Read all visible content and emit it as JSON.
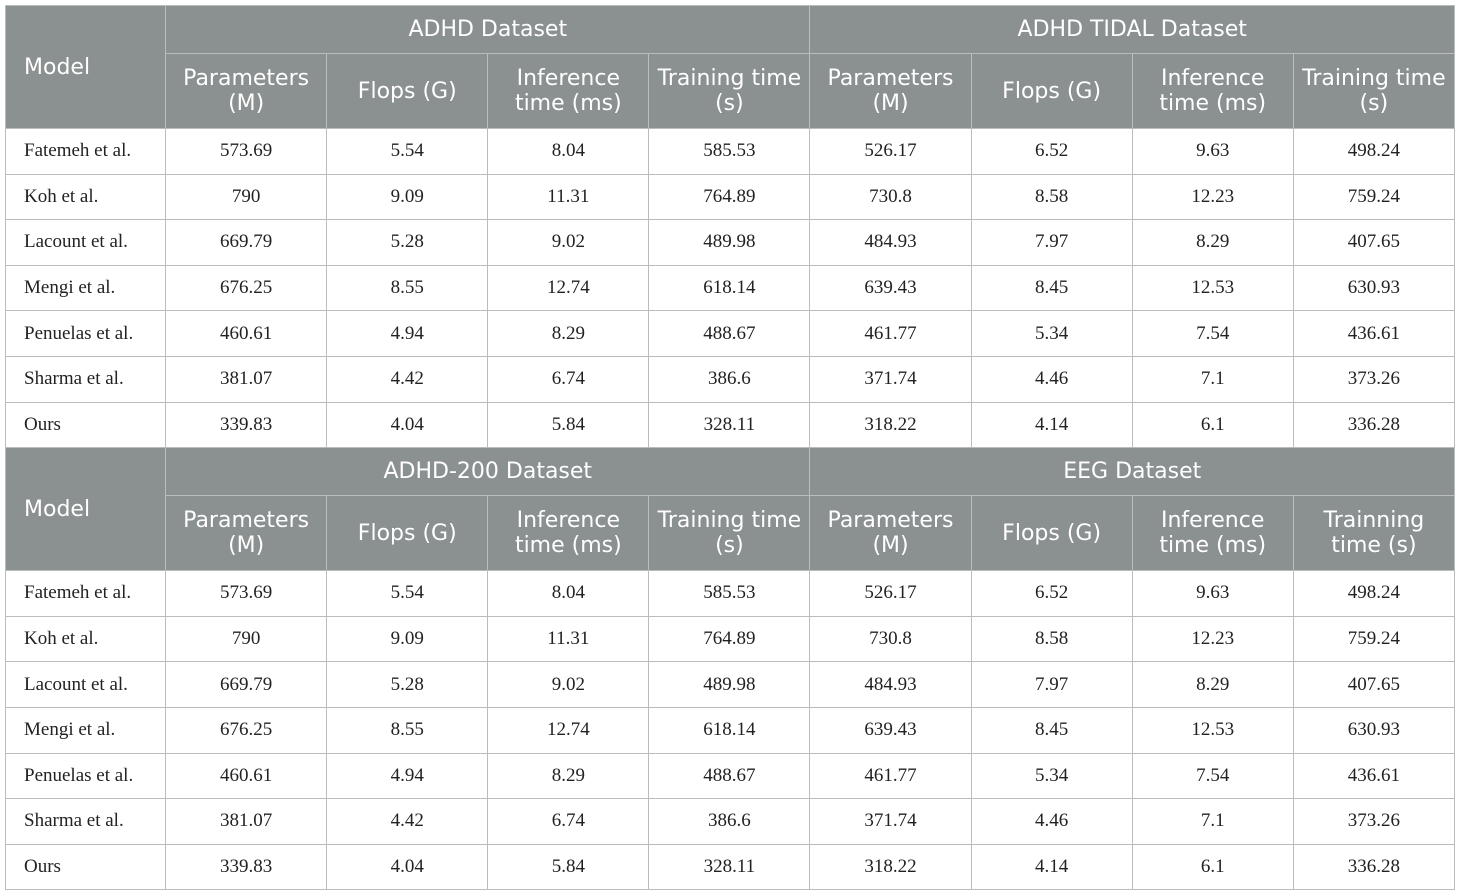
{
  "sections": [
    {
      "model_label": "Model",
      "groups": [
        "ADHD Dataset",
        "ADHD TIDAL Dataset"
      ],
      "headers": [
        "Parameters (M)",
        "Flops (G)",
        "Inference time (ms)",
        "Training time (s)",
        "Parameters (M)",
        "Flops (G)",
        "Inference time (ms)",
        "Training time (s)"
      ],
      "rows": [
        [
          "Fatemeh et al.",
          "573.69",
          "5.54",
          "8.04",
          "585.53",
          "526.17",
          "6.52",
          "9.63",
          "498.24"
        ],
        [
          "Koh et al.",
          "790",
          "9.09",
          "11.31",
          "764.89",
          "730.8",
          "8.58",
          "12.23",
          "759.24"
        ],
        [
          "Lacount et al.",
          "669.79",
          "5.28",
          "9.02",
          "489.98",
          "484.93",
          "7.97",
          "8.29",
          "407.65"
        ],
        [
          "Mengi et al.",
          "676.25",
          "8.55",
          "12.74",
          "618.14",
          "639.43",
          "8.45",
          "12.53",
          "630.93"
        ],
        [
          "Penuelas et al.",
          "460.61",
          "4.94",
          "8.29",
          "488.67",
          "461.77",
          "5.34",
          "7.54",
          "436.61"
        ],
        [
          "Sharma et al.",
          "381.07",
          "4.42",
          "6.74",
          "386.6",
          "371.74",
          "4.46",
          "7.1",
          "373.26"
        ],
        [
          "Ours",
          "339.83",
          "4.04",
          "5.84",
          "328.11",
          "318.22",
          "4.14",
          "6.1",
          "336.28"
        ]
      ]
    },
    {
      "model_label": "Model",
      "groups": [
        "ADHD-200 Dataset",
        "EEG Dataset"
      ],
      "headers": [
        "Parameters (M)",
        "Flops (G)",
        "Inference time (ms)",
        "Training time (s)",
        "Parameters (M)",
        "Flops (G)",
        "Inference time (ms)",
        "Trainning time (s)"
      ],
      "rows": [
        [
          "Fatemeh et al.",
          "573.69",
          "5.54",
          "8.04",
          "585.53",
          "526.17",
          "6.52",
          "9.63",
          "498.24"
        ],
        [
          "Koh et al.",
          "790",
          "9.09",
          "11.31",
          "764.89",
          "730.8",
          "8.58",
          "12.23",
          "759.24"
        ],
        [
          "Lacount et al.",
          "669.79",
          "5.28",
          "9.02",
          "489.98",
          "484.93",
          "7.97",
          "8.29",
          "407.65"
        ],
        [
          "Mengi et al.",
          "676.25",
          "8.55",
          "12.74",
          "618.14",
          "639.43",
          "8.45",
          "12.53",
          "630.93"
        ],
        [
          "Penuelas et al.",
          "460.61",
          "4.94",
          "8.29",
          "488.67",
          "461.77",
          "5.34",
          "7.54",
          "436.61"
        ],
        [
          "Sharma et al.",
          "381.07",
          "4.42",
          "6.74",
          "386.6",
          "371.74",
          "4.46",
          "7.1",
          "373.26"
        ],
        [
          "Ours",
          "339.83",
          "4.04",
          "5.84",
          "328.11",
          "318.22",
          "4.14",
          "6.1",
          "336.28"
        ]
      ]
    }
  ]
}
